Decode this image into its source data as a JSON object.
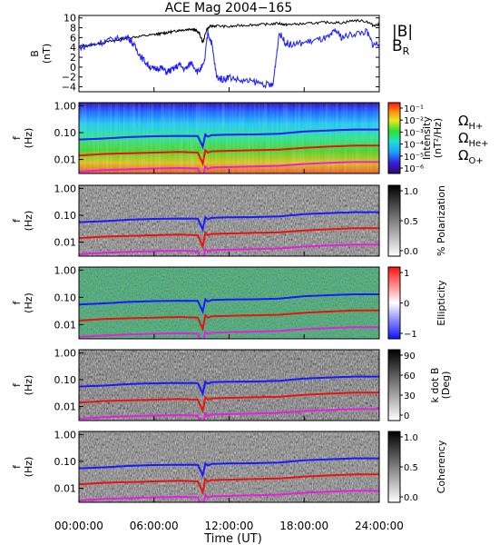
{
  "title": "ACE Mag 2004−165",
  "xaxis": {
    "label": "Time (UT)",
    "ticks": [
      "00:00:00",
      "06:00:00",
      "12:00:00",
      "18:00:00",
      "24:00:00"
    ],
    "range_hours": [
      0,
      24
    ]
  },
  "colors": {
    "blue": "#1a1aff",
    "red": "#e8140f",
    "magenta": "#e81ee0",
    "black": "#000000"
  },
  "chart_data": [
    {
      "type": "line",
      "panel": "B",
      "ylabel_top": "B",
      "ylabel_bottom": "(nT)",
      "ylim": [
        -5,
        10.5
      ],
      "yticks": [
        -4,
        -2,
        0,
        2,
        4,
        6,
        8,
        10
      ],
      "legend": [
        {
          "text": "|B|",
          "color": "#000000"
        },
        {
          "text": "B",
          "sub": "R",
          "color": "#1a1aff"
        }
      ],
      "series": [
        {
          "name": "|B|",
          "color": "#000000",
          "x": [
            0,
            1,
            2,
            3,
            4,
            5,
            6,
            6.5,
            7,
            7.5,
            8,
            8.5,
            9,
            9.3,
            9.6,
            9.9,
            10.2,
            10.5,
            11,
            12,
            13,
            14,
            15,
            16,
            16.5,
            17,
            18,
            19,
            20,
            21,
            22,
            23,
            23.5,
            24
          ],
          "y": [
            4.2,
            4.5,
            5.0,
            5.5,
            6.0,
            6.3,
            6.6,
            6.8,
            7.0,
            7.2,
            7.5,
            7.6,
            7.8,
            7.5,
            7.0,
            5.0,
            7.6,
            8.3,
            8.4,
            8.2,
            8.5,
            8.6,
            8.7,
            8.9,
            8.6,
            8.7,
            8.8,
            9.0,
            9.1,
            9.0,
            9.5,
            9.3,
            8.5,
            8.6
          ]
        },
        {
          "name": "B_R",
          "color": "#1a1aff",
          "x": [
            0,
            1,
            2,
            3,
            4,
            4.5,
            5,
            5.5,
            6,
            6.5,
            7,
            7.5,
            8,
            8.5,
            9,
            9.5,
            10,
            10.3,
            10.6,
            11,
            11.5,
            12,
            13,
            14,
            15,
            15.5,
            16,
            16.5,
            17,
            18,
            19,
            20,
            20.5,
            21,
            22,
            23,
            23.5,
            24
          ],
          "y": [
            4.0,
            4.5,
            5.2,
            5.8,
            6.0,
            4.0,
            2.0,
            0.5,
            -0.5,
            0.0,
            -1.0,
            -0.5,
            0.5,
            -0.5,
            1.0,
            -1.0,
            0.5,
            7.0,
            5.0,
            -2.0,
            -2.5,
            -2.0,
            -2.8,
            -3.0,
            -3.5,
            -3.8,
            7.0,
            5.0,
            4.5,
            5.0,
            5.5,
            6.0,
            7.5,
            6.0,
            6.8,
            7.2,
            4.5,
            5.0
          ]
        }
      ]
    },
    {
      "type": "heatmap",
      "panel": "intensity",
      "ylabel_top": "f",
      "ylabel_bottom": "(Hz)",
      "yscale": "log",
      "ylim": [
        0.003,
        1.3
      ],
      "yticks": [
        "1.00",
        "0.10",
        "0.01"
      ],
      "colorbar": {
        "label": "Intensity",
        "units": "(nT²/Hz)",
        "ticks": [
          "10⁻¹",
          "10⁻²",
          "10⁻³",
          "10⁻⁴",
          "10⁻⁵",
          "10⁻⁶"
        ]
      },
      "legend": [
        {
          "text": "Ω",
          "sub": "H+",
          "color": "#1a1aff"
        },
        {
          "text": "Ω",
          "sub": "He+",
          "color": "#e8140f"
        },
        {
          "text": "Ω",
          "sub": "O+",
          "color": "#e81ee0"
        }
      ]
    },
    {
      "type": "heatmap",
      "panel": "polarization",
      "ylabel_top": "f",
      "ylabel_bottom": "(Hz)",
      "yscale": "log",
      "yticks": [
        "1.00",
        "0.10",
        "0.01"
      ],
      "colorbar": {
        "label": "% Polarization",
        "units": "",
        "ticks": [
          "1.0",
          "0.5",
          "0.0"
        ]
      }
    },
    {
      "type": "heatmap",
      "panel": "ellipticity",
      "ylabel_top": "f",
      "ylabel_bottom": "(Hz)",
      "yscale": "log",
      "yticks": [
        "1.00",
        "0.10",
        "0.01"
      ],
      "colorbar": {
        "label": "Ellipticity",
        "units": "",
        "ticks": [
          "1",
          "0",
          "−1"
        ]
      }
    },
    {
      "type": "heatmap",
      "panel": "kdotb",
      "ylabel_top": "f",
      "ylabel_bottom": "(Hz)",
      "yscale": "log",
      "yticks": [
        "1.00",
        "0.10",
        "0.01"
      ],
      "colorbar": {
        "label": "k dot B",
        "units": "(Deg)",
        "ticks": [
          "90",
          "60",
          "30",
          "0"
        ]
      }
    },
    {
      "type": "heatmap",
      "panel": "coherency",
      "ylabel_top": "f",
      "ylabel_bottom": "(Hz)",
      "yscale": "log",
      "yticks": [
        "1.00",
        "0.10",
        "0.01"
      ],
      "colorbar": {
        "label": "Coherency",
        "units": "",
        "ticks": [
          "1.0",
          "0.5",
          "0.0"
        ]
      }
    }
  ],
  "gyro_lines": {
    "x": [
      0,
      2,
      4,
      6,
      8,
      9.5,
      9.9,
      10.1,
      10.3,
      10.6,
      12,
      14,
      16,
      18,
      20,
      22,
      24
    ],
    "H": [
      0.055,
      0.06,
      0.068,
      0.073,
      0.075,
      0.074,
      0.03,
      0.085,
      0.07,
      0.08,
      0.083,
      0.085,
      0.09,
      0.11,
      0.12,
      0.13,
      0.13
    ],
    "He": [
      0.014,
      0.016,
      0.017,
      0.018,
      0.019,
      0.018,
      0.007,
      0.022,
      0.018,
      0.02,
      0.021,
      0.022,
      0.023,
      0.027,
      0.03,
      0.033,
      0.033
    ],
    "O": [
      0.0035,
      0.004,
      0.0043,
      0.0046,
      0.0048,
      0.0046,
      0.0018,
      0.0055,
      0.0045,
      0.005,
      0.0052,
      0.0055,
      0.0058,
      0.0068,
      0.0075,
      0.008,
      0.008
    ]
  }
}
